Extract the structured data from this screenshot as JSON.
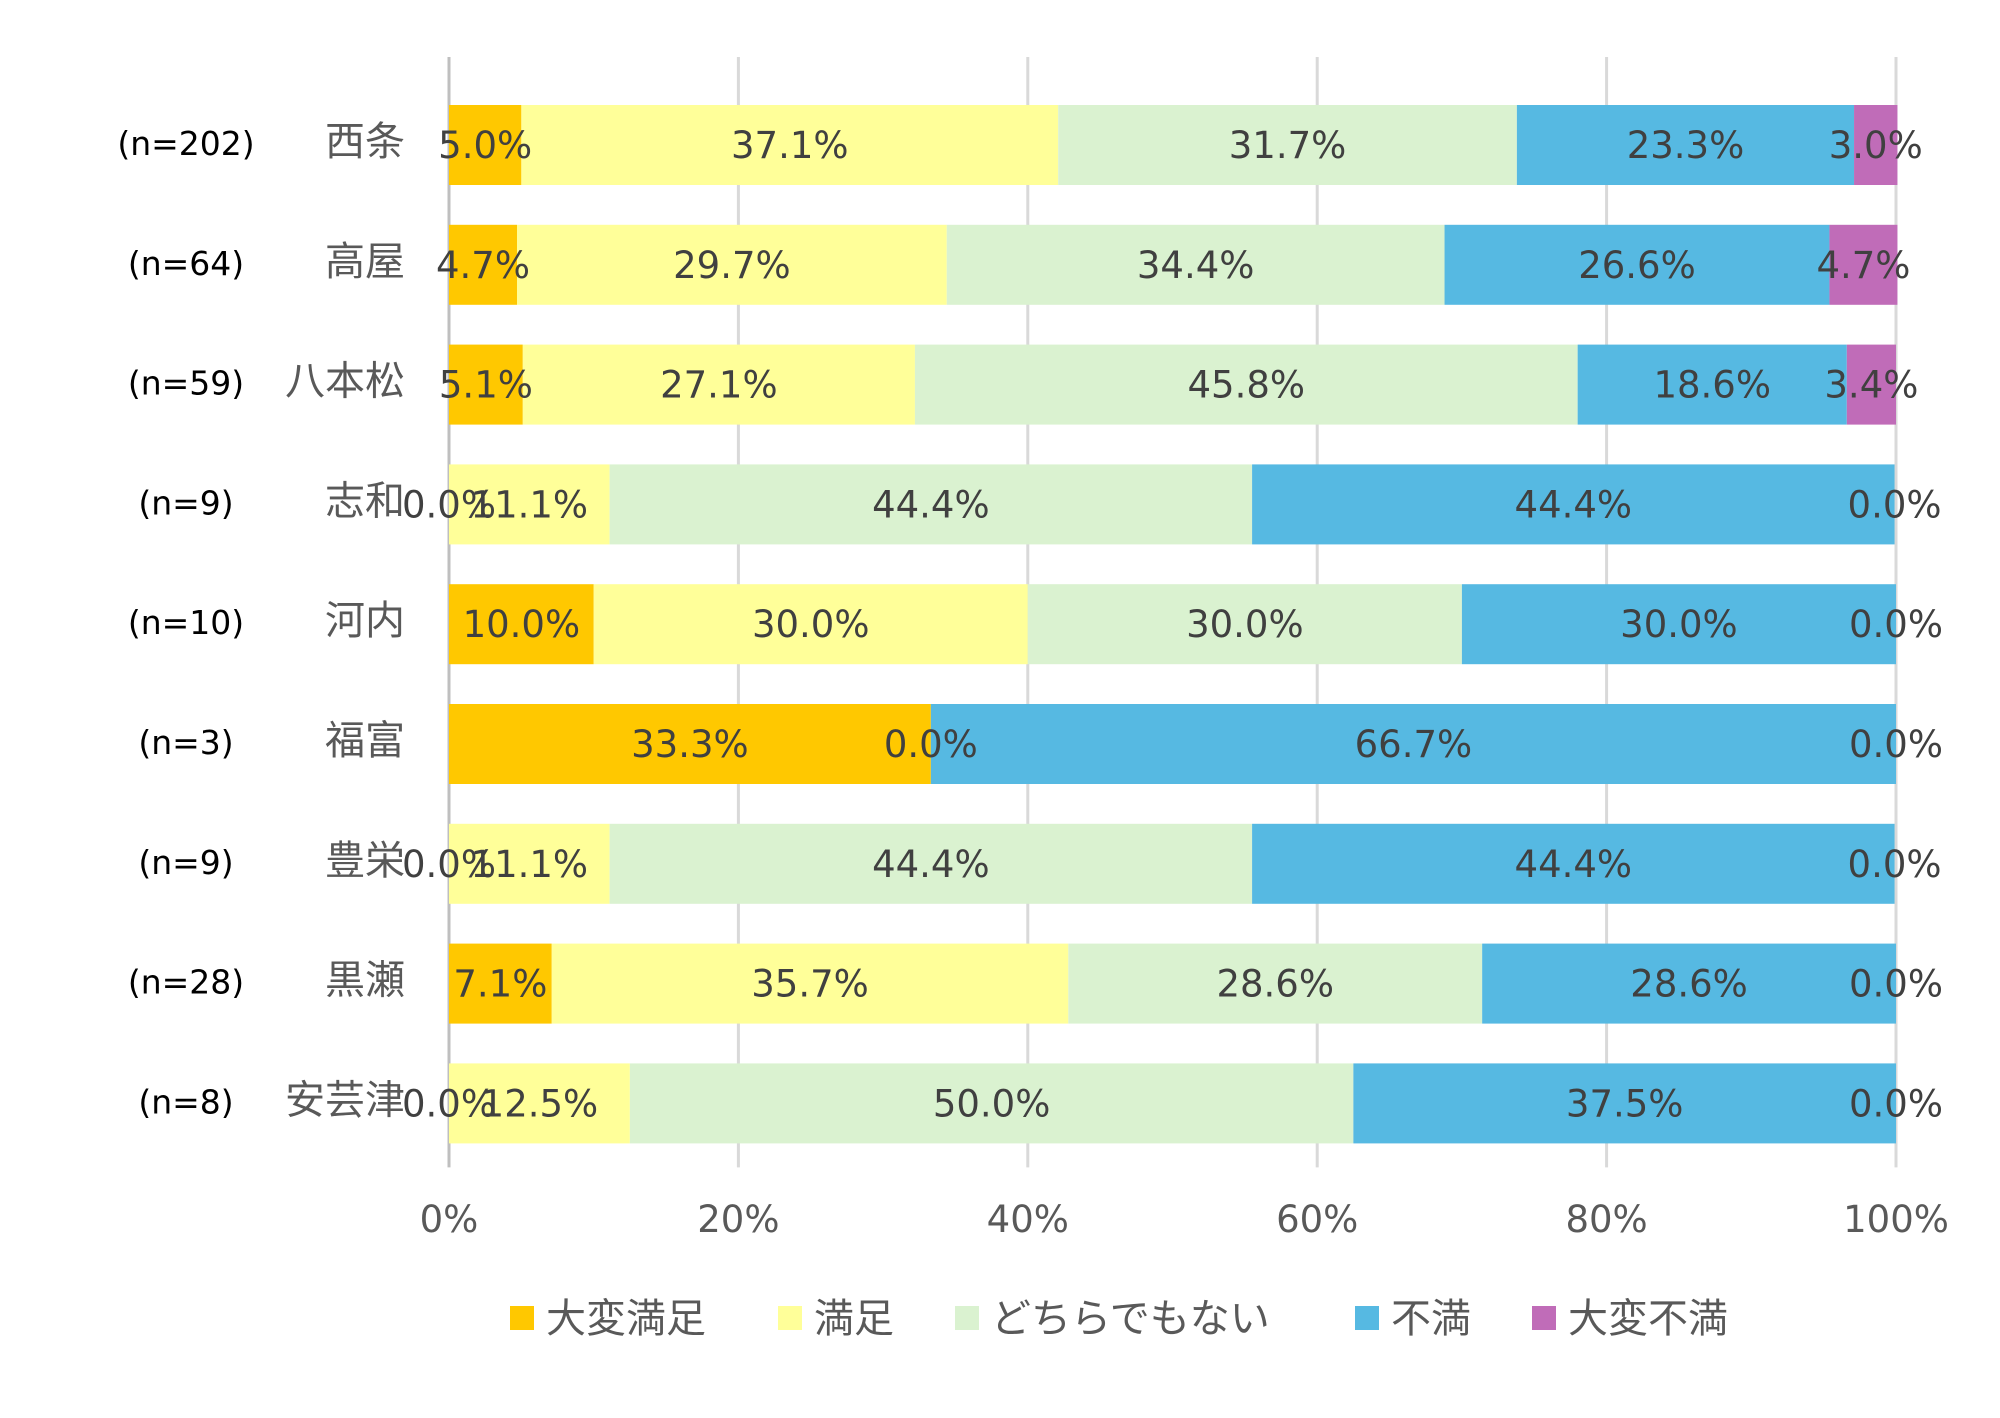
{
  "chart_data": {
    "type": "bar",
    "orientation": "horizontal",
    "stacked": "percent",
    "title": "",
    "xlabel": "",
    "ylabel": "",
    "xlim": [
      0,
      100
    ],
    "x_ticks": [
      "0%",
      "20%",
      "40%",
      "60%",
      "80%",
      "100%"
    ],
    "grid": true,
    "legend_position": "bottom",
    "categories": [
      "西条",
      "高屋",
      "八本松",
      "志和",
      "河内",
      "福富",
      "豊栄",
      "黒瀬",
      "安芸津"
    ],
    "sample_sizes": [
      "(n=202)",
      "(n=64)",
      "(n=59)",
      "(n=9)",
      "(n=10)",
      "(n=3)",
      "(n=9)",
      "(n=28)",
      "(n=8)"
    ],
    "series": [
      {
        "name": "大変満足",
        "color": "#FFC800",
        "values": [
          5.0,
          4.7,
          5.1,
          0.0,
          10.0,
          33.3,
          0.0,
          7.1,
          0.0
        ]
      },
      {
        "name": "満足",
        "color": "#FFFF99",
        "values": [
          37.1,
          29.7,
          27.1,
          11.1,
          30.0,
          0.0,
          11.1,
          35.7,
          12.5
        ]
      },
      {
        "name": "どちらでもない",
        "color": "#DAF2D0",
        "values": [
          31.7,
          34.4,
          45.8,
          44.4,
          30.0,
          null,
          44.4,
          28.6,
          50.0
        ]
      },
      {
        "name": "不満",
        "color": "#56B9E2",
        "values": [
          23.3,
          26.6,
          18.6,
          44.4,
          30.0,
          66.7,
          44.4,
          28.6,
          37.5
        ]
      },
      {
        "name": "大変不満",
        "color": "#C06CB8",
        "values": [
          3.0,
          4.7,
          3.4,
          0.0,
          0.0,
          0.0,
          0.0,
          0.0,
          0.0
        ]
      }
    ]
  }
}
